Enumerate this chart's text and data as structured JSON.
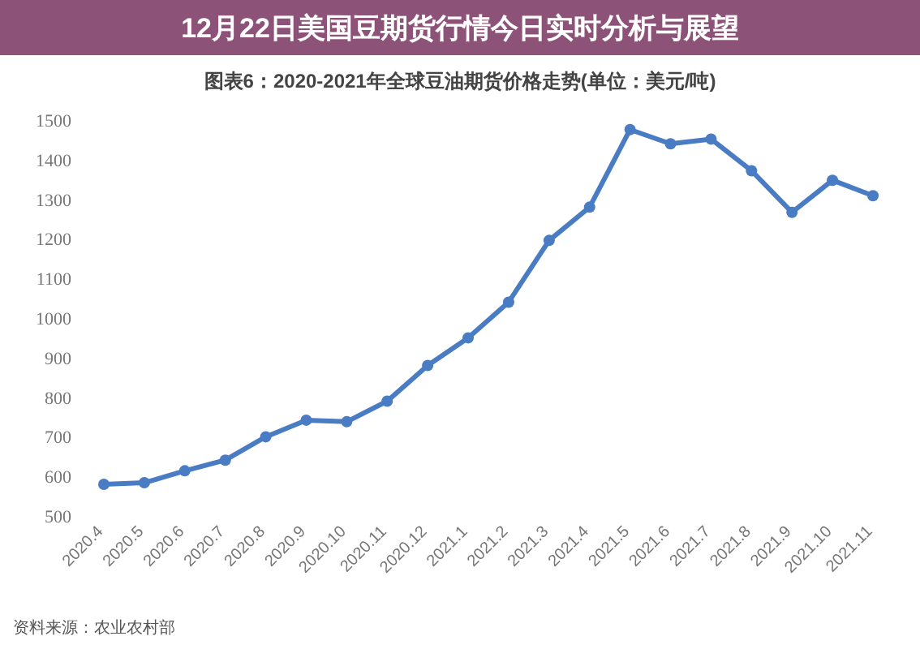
{
  "chart_data": {
    "type": "line",
    "title": "图表6：2020-2021年全球豆油期货价格走势(单位：美元/吨)",
    "subtitle": "12月22日美国豆期货行情今日实时分析与展望",
    "annotations": [
      "资料来源：农业农村部"
    ],
    "categories": [
      "2020.4",
      "2020.5",
      "2020.6",
      "2020.7",
      "2020.8",
      "2020.9",
      "2020.10",
      "2020.11",
      "2020.12",
      "2021.1",
      "2021.2",
      "2021.3",
      "2021.4",
      "2021.5",
      "2021.6",
      "2021.7",
      "2021.8",
      "2021.9",
      "2021.10",
      "2021.11"
    ],
    "series": [
      {
        "color": "#4a7cc4",
        "values": [
          580,
          584,
          614,
          641,
          700,
          742,
          738,
          790,
          880,
          950,
          1040,
          1196,
          1280,
          1476,
          1440,
          1452,
          1372,
          1267,
          1348,
          1309
        ]
      }
    ],
    "ylim": [
      500,
      1500
    ],
    "yticks": [
      500,
      600,
      700,
      800,
      900,
      1000,
      1100,
      1200,
      1300,
      1400,
      1500
    ],
    "marker": "circle"
  }
}
